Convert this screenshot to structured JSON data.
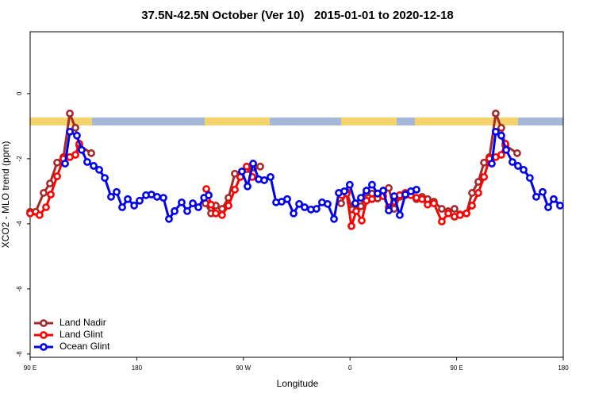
{
  "chart_data": {
    "type": "line",
    "title": "37.5N-42.5N October (Ver 10)   2015-01-01 to 2020-12-18",
    "x_label": "Longitude",
    "y_label": "XCO2 - MLO trend (ppm)",
    "xlim": [
      90,
      540
    ],
    "ylim": [
      -8.1,
      1.9
    ],
    "xticks": [
      {
        "value": 90,
        "label": "90 E"
      },
      180,
      {
        "value": 270,
        "label": "90 W"
      },
      {
        "value": 360,
        "label": "0"
      },
      {
        "value": 450,
        "label": "90 E"
      },
      {
        "value": 540,
        "label": "180"
      }
    ],
    "yticks": [
      -8,
      -6,
      -4,
      -2,
      0
    ],
    "legend": "bottom-left",
    "series": [
      {
        "name": "Land Nadir",
        "color": "#a52a2a",
        "x": [
          90,
          94.7,
          101.4,
          106.7,
          112.8,
          118.1,
          123.5,
          128.2,
          131.5,
          141.6,
          null,
          238,
          242.7,
          246.7,
          252,
          257.4,
          262.8,
          267.4,
          272.8,
          278.8,
          284.2,
          null,
          352.5,
          357.2,
          361.9,
          369.2,
          373.9,
          378.6,
          383.3,
          388,
          392.7,
          397.3,
          402,
          406.7,
          411.4,
          416.1,
          420.8,
          425.5,
          430.8,
          437.5,
          442.9,
          448.2,
          452.9,
          458.3,
          463,
          468.3,
          473.1,
          477.7,
          483,
          487.7,
          491.1,
          501.1
        ],
        "values": [
          -3.63,
          -3.63,
          -3.05,
          -2.76,
          -2.12,
          -1.95,
          -0.61,
          -1.05,
          -1.59,
          -1.83,
          null,
          -3.37,
          -3.68,
          -3.44,
          -3.54,
          -3.2,
          -2.46,
          -2.51,
          -2.32,
          -2.27,
          -2.24,
          null,
          -3.37,
          -3.02,
          -3.56,
          -3.46,
          -3.05,
          -3.07,
          -3.22,
          -3.02,
          -2.9,
          -3.54,
          -3.17,
          -3.12,
          -3.07,
          -3.24,
          -3.17,
          -3.24,
          -3.32,
          -3.54,
          -3.61,
          -3.54,
          -3.71,
          -3.68,
          -3.05,
          -2.71,
          -2.12,
          -1.95,
          -0.61,
          -1.05,
          -1.59,
          -1.83
        ]
      },
      {
        "name": "Land Glint",
        "color": "#ff0000",
        "x": [
          90,
          98,
          103.4,
          107.4,
          112.8,
          118.1,
          123.5,
          128.2,
          131.5,
          null,
          238.7,
          242.7,
          246.7,
          252,
          257.4,
          262.8,
          267.4,
          272.8,
          277.5,
          null,
          353.2,
          357.2,
          361.2,
          365.2,
          369.9,
          373.9,
          378.6,
          383.3,
          388,
          392.7,
          397.3,
          402,
          406.7,
          411.4,
          416.1,
          420.8,
          425.5,
          430.8,
          437.5,
          442.9,
          448.2,
          452.9,
          458.3,
          463,
          468.3,
          473.1,
          477.7,
          483,
          487.7,
          491.1
        ],
        "values": [
          -3.68,
          -3.73,
          -3.49,
          -3.1,
          -2.54,
          -2.0,
          -1.95,
          -1.88,
          -1.54,
          null,
          -2.93,
          -3.41,
          -3.68,
          -3.73,
          -3.44,
          -2.95,
          -2.56,
          -2.24,
          -2.56,
          null,
          -3.12,
          -3.07,
          -4.07,
          -3.61,
          -3.9,
          -3.29,
          -3.24,
          -3.07,
          -3.15,
          -3.49,
          -3.32,
          -3.12,
          -3.05,
          -3.12,
          -3.2,
          -3.24,
          -3.41,
          -3.37,
          -3.93,
          -3.68,
          -3.78,
          -3.73,
          -3.68,
          -3.44,
          -3.05,
          -2.56,
          -2.0,
          -1.95,
          -1.88,
          -1.54
        ]
      },
      {
        "name": "Ocean Glint",
        "color": "#0000ee",
        "x": [
          119.5,
          123.5,
          129.5,
          133.5,
          138.2,
          143.6,
          148.3,
          153,
          158.3,
          163,
          167.7,
          172.4,
          177.8,
          182.4,
          187.8,
          192.4,
          197.1,
          202.5,
          207.2,
          211.9,
          217.9,
          222.6,
          227.3,
          232,
          236.8,
          240.7,
          null,
          268.8,
          273.5,
          278.2,
          282.9,
          287.6,
          292.9,
          297.6,
          302.3,
          307,
          312.4,
          317.1,
          321.7,
          327,
          331.7,
          336.4,
          341.1,
          346.5,
          350.5,
          355.2,
          359.8,
          364.5,
          369.2,
          373.9,
          378.6,
          383.3,
          388,
          392.7,
          397.3,
          402,
          406.7,
          411.4,
          416.1,
          null,
          479.7,
          483,
          487.7,
          491.8,
          497.1,
          501.8,
          506.5,
          511.8,
          517.2,
          522.6,
          527.3,
          531.9,
          537.3
        ],
        "values": [
          -2.15,
          -1.17,
          -1.29,
          -1.73,
          -2.1,
          -2.22,
          -2.34,
          -2.59,
          -3.17,
          -3.02,
          -3.49,
          -3.24,
          -3.44,
          -3.29,
          -3.12,
          -3.1,
          -3.17,
          -3.2,
          -3.85,
          -3.61,
          -3.34,
          -3.61,
          -3.37,
          -3.49,
          -3.2,
          -3.12,
          null,
          -2.39,
          -2.85,
          -2.15,
          -2.63,
          -2.66,
          -2.56,
          -3.34,
          -3.32,
          -3.24,
          -3.68,
          -3.39,
          -3.49,
          -3.56,
          -3.54,
          -3.34,
          -3.39,
          -3.85,
          -3.05,
          -3.0,
          -2.8,
          -3.37,
          -3.2,
          -2.98,
          -2.8,
          -3.07,
          -2.98,
          -3.59,
          -3.15,
          -3.73,
          -3.1,
          -3.0,
          -2.95,
          null,
          -2.15,
          -1.17,
          -1.29,
          -1.73,
          -2.1,
          -2.22,
          -2.34,
          -2.59,
          -3.17,
          -3.02,
          -3.49,
          -3.24,
          -3.44
        ]
      }
    ]
  }
}
